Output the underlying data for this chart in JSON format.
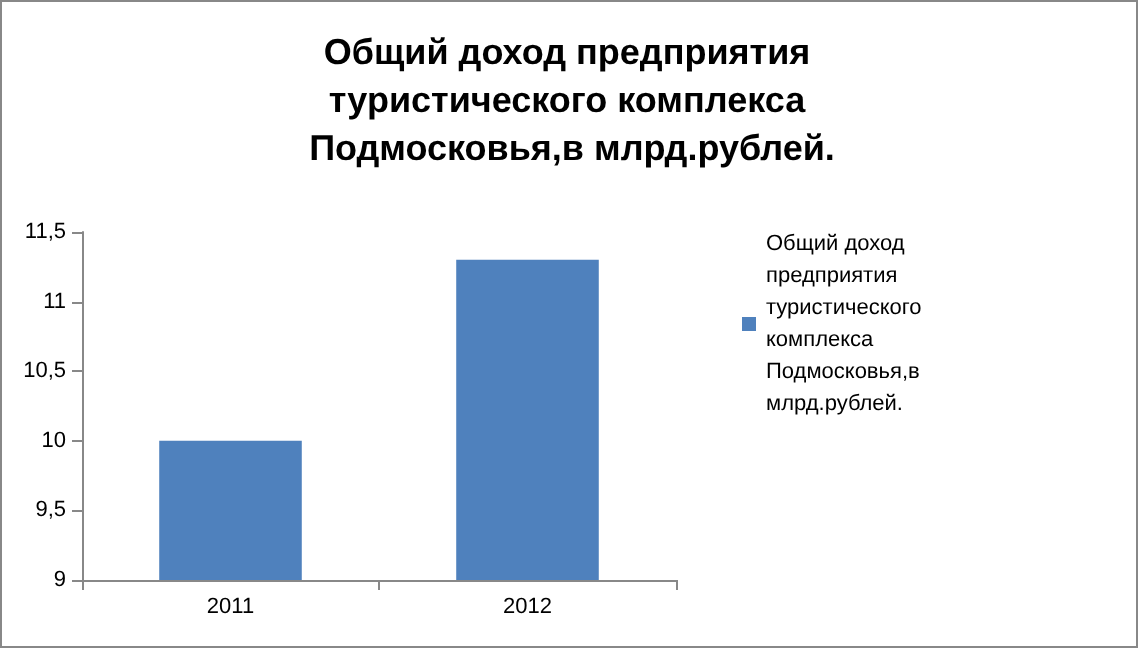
{
  "chart_data": {
    "type": "bar",
    "title": "Общий доход предприятия туристического комплекса Подмосковья,в млрд.рублей.",
    "categories": [
      "2011",
      "2012"
    ],
    "series": [
      {
        "name": "Общий доход предприятия туристического комплекса Подмосковья,в  млрд.рублей.",
        "color": "#4f81bd",
        "values": [
          10,
          11.3
        ]
      }
    ],
    "ylim": [
      9,
      11.5
    ],
    "yticks": [
      9,
      {
        "value": 9.5,
        "label": "9,5"
      },
      10,
      {
        "value": 10.5,
        "label": "10,5"
      },
      11,
      {
        "value": 11.5,
        "label": "11,5"
      }
    ],
    "grid": false,
    "legend": "right"
  }
}
